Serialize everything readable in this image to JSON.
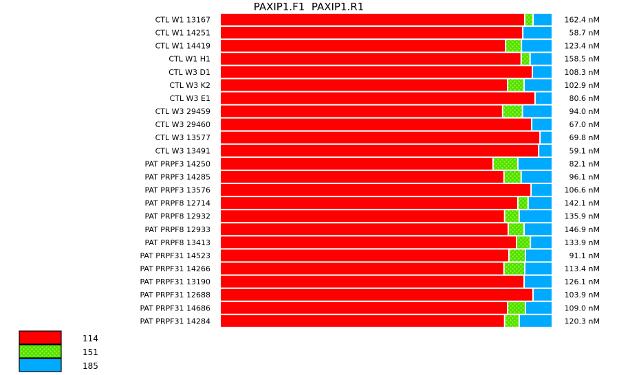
{
  "chart_data": {
    "type": "bar",
    "orientation": "horizontal",
    "stacked": true,
    "normalized": true,
    "title": "PAXIP1.F1  PAXIP1.R1",
    "categories": [
      "CTL W1 13167",
      "CTL W1 14251",
      "CTL W1 14419",
      "CTL W1 H1",
      "CTL W3 D1",
      "CTL W3 K2",
      "CTL W3 E1",
      "CTL W3 29459",
      "CTL W3 29460",
      "CTL W3 13577",
      "CTL W3 13491",
      "PAT PRPF3 14250",
      "PAT PRPF3 14285",
      "PAT PRPF3 13576",
      "PAT PRPF8 12714",
      "PAT PRPF8 12932",
      "PAT PRPF8 12933",
      "PAT PRPF8 13413",
      "PAT PRPF31 14523",
      "PAT PRPF31 14266",
      "PAT PRPF31 13190",
      "PAT PRPF31 12688",
      "PAT PRPF31 14686",
      "PAT PRPF31 14284"
    ],
    "right_labels": [
      "162.4 nM",
      "58.7 nM",
      "123.4 nM",
      "158.5 nM",
      "108.3 nM",
      "102.9 nM",
      "80.6 nM",
      "94.0 nM",
      "67.0 nM",
      "69.8 nM",
      "59.1 nM",
      "82.1 nM",
      "96.1 nM",
      "106.6 nM",
      "142.1 nM",
      "135.9 nM",
      "146.9 nM",
      "133.9 nM",
      "91.1 nM",
      "113.4 nM",
      "126.1 nM",
      "103.9 nM",
      "109.0 nM",
      "120.3 nM"
    ],
    "unit": "percent",
    "series": [
      {
        "name": "114",
        "color": "#ff0000",
        "pattern": "solid",
        "values": [
          92.1,
          91.5,
          86.3,
          91.0,
          94.4,
          86.9,
          95.2,
          85.4,
          94.2,
          96.7,
          96.3,
          82.5,
          85.8,
          94.0,
          90.0,
          86.0,
          87.1,
          89.6,
          87.3,
          85.8,
          91.9,
          94.6,
          86.9,
          86.0
        ]
      },
      {
        "name": "151",
        "color": "#55dd00",
        "pattern": "checkered",
        "values": [
          2.5,
          0,
          4.8,
          2.7,
          0,
          5.0,
          0,
          6.0,
          0,
          0,
          0,
          7.5,
          5.2,
          0,
          3.1,
          4.4,
          4.8,
          4.2,
          5.0,
          6.3,
          0,
          0,
          5.4,
          4.4
        ]
      },
      {
        "name": "185",
        "color": "#00aaff",
        "pattern": "solid",
        "values": [
          5.4,
          8.5,
          8.9,
          6.3,
          5.6,
          8.1,
          4.8,
          8.6,
          5.8,
          3.3,
          3.7,
          10.0,
          9.0,
          6.0,
          6.9,
          9.6,
          8.1,
          6.2,
          7.7,
          7.9,
          8.1,
          5.4,
          7.7,
          9.6
        ]
      }
    ],
    "legend_position": "bottom-left",
    "grid": false
  }
}
